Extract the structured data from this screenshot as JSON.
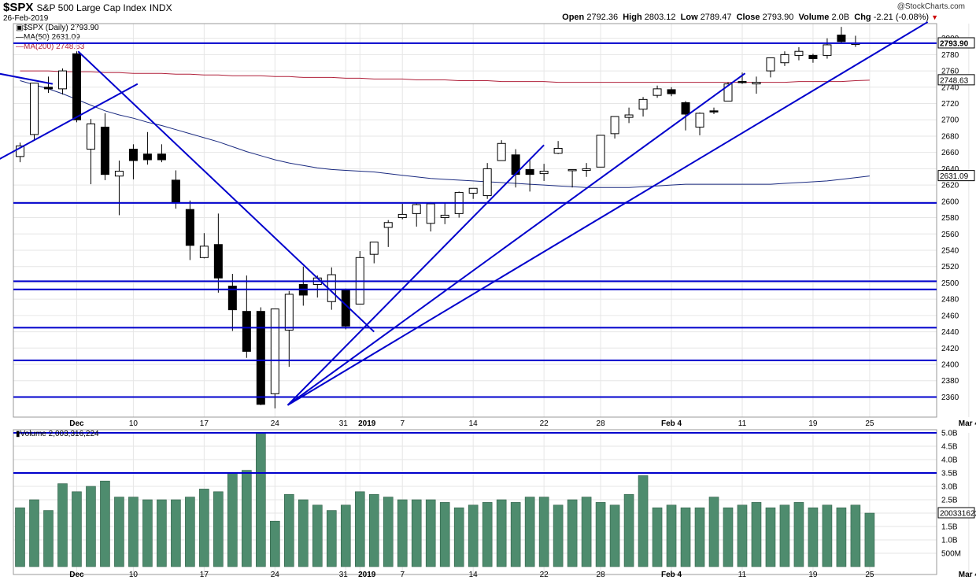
{
  "header": {
    "symbol": "$SPX",
    "name": "S&P 500 Large Cap Index",
    "exchange": "INDX",
    "date": "26-Feb-2019",
    "copyright": "@StockCharts.com",
    "open_label": "Open",
    "open": "2792.36",
    "high_label": "High",
    "high": "2803.12",
    "low_label": "Low",
    "low": "2789.47",
    "close_label": "Close",
    "close": "2793.90",
    "volume_label": "Volume",
    "volume": "2.0B",
    "chg_label": "Chg",
    "chg": "-2.21 (-0.08%)"
  },
  "legend": {
    "price": "$SPX (Daily) 2793.90",
    "ma50": "MA(50) 2631.09",
    "ma200": "MA(200) 2748.63",
    "volume": "Volume 2,003,316,224"
  },
  "colors": {
    "up": "#ffffff",
    "down": "#000000",
    "trendline": "#0000cc",
    "ma50": "#1a2a80",
    "ma200": "#b0203a",
    "volume_bar": "#4e8c6e",
    "grid": "#e6e6e6"
  },
  "chart_data": [
    {
      "type": "candlestick",
      "title": "$SPX (Daily)",
      "ylim": [
        2345,
        2818
      ],
      "y_ticks": [
        2360,
        2380,
        2400,
        2420,
        2440,
        2460,
        2480,
        2500,
        2520,
        2540,
        2560,
        2580,
        2600,
        2620,
        2640,
        2660,
        2680,
        2700,
        2720,
        2740,
        2760,
        2780,
        2800
      ],
      "x_tick_labels": [
        {
          "label": "Dec",
          "bold": true,
          "index": 4
        },
        {
          "label": "10",
          "index": 8
        },
        {
          "label": "17",
          "index": 13
        },
        {
          "label": "24",
          "index": 18
        },
        {
          "label": "31",
          "index": 23
        },
        {
          "label": "2019",
          "bold": true,
          "index": 24
        },
        {
          "label": "7",
          "index": 27
        },
        {
          "label": "14",
          "index": 32
        },
        {
          "label": "22",
          "index": 37
        },
        {
          "label": "28",
          "index": 41
        },
        {
          "label": "Feb 4",
          "bold": true,
          "index": 46
        },
        {
          "label": "11",
          "index": 51
        },
        {
          "label": "19",
          "index": 56
        },
        {
          "label": "25",
          "index": 60
        },
        {
          "label": "Mar 4",
          "bold": true,
          "index": 67
        }
      ],
      "candles": [
        {
          "o": 2655,
          "h": 2672,
          "l": 2648,
          "c": 2668
        },
        {
          "o": 2682,
          "h": 2745,
          "l": 2675,
          "c": 2745
        },
        {
          "o": 2740,
          "h": 2753,
          "l": 2733,
          "c": 2738
        },
        {
          "o": 2738,
          "h": 2763,
          "l": 2731,
          "c": 2760
        },
        {
          "o": 2781,
          "h": 2784,
          "l": 2697,
          "c": 2700
        },
        {
          "o": 2664,
          "h": 2701,
          "l": 2621,
          "c": 2695
        },
        {
          "o": 2691,
          "h": 2708,
          "l": 2626,
          "c": 2633
        },
        {
          "o": 2631,
          "h": 2650,
          "l": 2583,
          "c": 2637
        },
        {
          "o": 2664,
          "h": 2670,
          "l": 2627,
          "c": 2650
        },
        {
          "o": 2658,
          "h": 2685,
          "l": 2645,
          "c": 2651
        },
        {
          "o": 2658,
          "h": 2670,
          "l": 2648,
          "c": 2651
        },
        {
          "o": 2626,
          "h": 2638,
          "l": 2591,
          "c": 2598
        },
        {
          "o": 2590,
          "h": 2601,
          "l": 2528,
          "c": 2546
        },
        {
          "o": 2531,
          "h": 2561,
          "l": 2530,
          "c": 2545
        },
        {
          "o": 2547,
          "h": 2585,
          "l": 2488,
          "c": 2506
        },
        {
          "o": 2496,
          "h": 2511,
          "l": 2441,
          "c": 2467
        },
        {
          "o": 2465,
          "h": 2509,
          "l": 2408,
          "c": 2416
        },
        {
          "o": 2465,
          "h": 2470,
          "l": 2350,
          "c": 2351
        },
        {
          "o": 2364,
          "h": 2468,
          "l": 2346,
          "c": 2468
        },
        {
          "o": 2442,
          "h": 2490,
          "l": 2397,
          "c": 2486
        },
        {
          "o": 2498,
          "h": 2520,
          "l": 2472,
          "c": 2485
        },
        {
          "o": 2498,
          "h": 2509,
          "l": 2482,
          "c": 2506
        },
        {
          "o": 2477,
          "h": 2519,
          "l": 2467,
          "c": 2510
        },
        {
          "o": 2491,
          "h": 2493,
          "l": 2443,
          "c": 2447
        },
        {
          "o": 2474,
          "h": 2539,
          "l": 2474,
          "c": 2531
        },
        {
          "o": 2535,
          "h": 2547,
          "l": 2524,
          "c": 2550
        },
        {
          "o": 2568,
          "h": 2577,
          "l": 2544,
          "c": 2574
        },
        {
          "o": 2580,
          "h": 2597,
          "l": 2578,
          "c": 2584
        },
        {
          "o": 2585,
          "h": 2598,
          "l": 2569,
          "c": 2596
        },
        {
          "o": 2573,
          "h": 2599,
          "l": 2563,
          "c": 2597
        },
        {
          "o": 2580,
          "h": 2598,
          "l": 2572,
          "c": 2583
        },
        {
          "o": 2585,
          "h": 2612,
          "l": 2580,
          "c": 2611
        },
        {
          "o": 2610,
          "h": 2616,
          "l": 2603,
          "c": 2616
        },
        {
          "o": 2607,
          "h": 2647,
          "l": 2603,
          "c": 2640
        },
        {
          "o": 2650,
          "h": 2675,
          "l": 2650,
          "c": 2671
        },
        {
          "o": 2657,
          "h": 2664,
          "l": 2617,
          "c": 2633
        },
        {
          "o": 2639,
          "h": 2651,
          "l": 2612,
          "c": 2633
        },
        {
          "o": 2634,
          "h": 2646,
          "l": 2625,
          "c": 2637
        },
        {
          "o": 2659,
          "h": 2674,
          "l": 2658,
          "c": 2665
        },
        {
          "o": 2639,
          "h": 2639,
          "l": 2617,
          "c": 2639
        },
        {
          "o": 2638,
          "h": 2647,
          "l": 2630,
          "c": 2640
        },
        {
          "o": 2642,
          "h": 2681,
          "l": 2642,
          "c": 2681
        },
        {
          "o": 2683,
          "h": 2704,
          "l": 2677,
          "c": 2704
        },
        {
          "o": 2703,
          "h": 2715,
          "l": 2696,
          "c": 2706
        },
        {
          "o": 2713,
          "h": 2728,
          "l": 2704,
          "c": 2725
        },
        {
          "o": 2730,
          "h": 2742,
          "l": 2727,
          "c": 2738
        },
        {
          "o": 2737,
          "h": 2740,
          "l": 2729,
          "c": 2732
        },
        {
          "o": 2721,
          "h": 2723,
          "l": 2687,
          "c": 2707
        },
        {
          "o": 2691,
          "h": 2709,
          "l": 2681,
          "c": 2708
        },
        {
          "o": 2711,
          "h": 2715,
          "l": 2707,
          "c": 2710
        },
        {
          "o": 2723,
          "h": 2746,
          "l": 2723,
          "c": 2744
        },
        {
          "o": 2747,
          "h": 2758,
          "l": 2744,
          "c": 2746
        },
        {
          "o": 2744,
          "h": 2753,
          "l": 2732,
          "c": 2746
        },
        {
          "o": 2760,
          "h": 2776,
          "l": 2752,
          "c": 2776
        },
        {
          "o": 2770,
          "h": 2784,
          "l": 2766,
          "c": 2780
        },
        {
          "o": 2779,
          "h": 2789,
          "l": 2773,
          "c": 2784
        },
        {
          "o": 2779,
          "h": 2781,
          "l": 2770,
          "c": 2775
        },
        {
          "o": 2779,
          "h": 2800,
          "l": 2775,
          "c": 2792
        },
        {
          "o": 2804,
          "h": 2814,
          "l": 2794,
          "c": 2796
        },
        {
          "o": 2792.36,
          "h": 2803.12,
          "l": 2789.47,
          "c": 2793.9
        }
      ],
      "ma50": [
        2748,
        2743,
        2738,
        2732,
        2725,
        2718,
        2711,
        2706,
        2702,
        2697,
        2693,
        2688,
        2683,
        2678,
        2673,
        2667,
        2661,
        2656,
        2651,
        2647,
        2644,
        2641,
        2639,
        2638,
        2637,
        2636,
        2634,
        2632,
        2630,
        2628,
        2627,
        2626,
        2625,
        2624,
        2623,
        2622,
        2621,
        2620,
        2619,
        2618,
        2617,
        2617,
        2617,
        2617,
        2618,
        2619,
        2620,
        2621,
        2621,
        2621,
        2621,
        2621,
        2621,
        2621,
        2622,
        2623,
        2624,
        2625,
        2627,
        2629,
        2631.09
      ],
      "ma200": [
        2760,
        2760,
        2760,
        2759,
        2759,
        2759,
        2758,
        2758,
        2757,
        2757,
        2757,
        2756,
        2756,
        2755,
        2755,
        2754,
        2754,
        2754,
        2753,
        2753,
        2752,
        2752,
        2752,
        2751,
        2751,
        2750,
        2750,
        2750,
        2749,
        2749,
        2749,
        2748,
        2748,
        2748,
        2747,
        2747,
        2747,
        2747,
        2746,
        2746,
        2746,
        2746,
        2746,
        2746,
        2746,
        2746,
        2746,
        2746,
        2746,
        2746,
        2746,
        2746,
        2746,
        2746,
        2746,
        2747,
        2747,
        2747,
        2747,
        2748,
        2748.63
      ],
      "last_price_label": "2793.90",
      "ma200_label": "2748.63",
      "ma50_label": "2631.09",
      "horizontal_lines": [
        2794,
        2598,
        2502,
        2492,
        2445,
        2405,
        2360
      ],
      "trendlines": [
        {
          "x1": -2.5,
          "y1": 2760,
          "x2": 2.3,
          "y2": 2744
        },
        {
          "x1": -2.5,
          "y1": 2642,
          "x2": 8.3,
          "y2": 2744
        },
        {
          "x1": 4.1,
          "y1": 2784,
          "x2": 25.0,
          "y2": 2440
        },
        {
          "x1": 18.9,
          "y1": 2350,
          "x2": 37.0,
          "y2": 2669
        },
        {
          "x1": 18.9,
          "y1": 2350,
          "x2": 51.2,
          "y2": 2757
        },
        {
          "x1": 18.9,
          "y1": 2350,
          "x2": 64.1,
          "y2": 2820
        }
      ]
    },
    {
      "type": "bar",
      "title": "Volume",
      "ylim": [
        0,
        5.0
      ],
      "y_tick_labels": [
        "500M",
        "1.0B",
        "1.5B",
        "2.0B",
        "2.5B",
        "3.0B",
        "3.5B",
        "4.0B",
        "4.5B",
        "5.0B"
      ],
      "y_tick_values": [
        0.5,
        1.0,
        1.5,
        2.0,
        2.5,
        3.0,
        3.5,
        4.0,
        4.5,
        5.0
      ],
      "last_volume_label": "2003316224",
      "horizontal_lines": [
        5.0,
        3.5
      ],
      "values": [
        2.2,
        2.5,
        2.1,
        3.1,
        2.8,
        3.0,
        3.2,
        2.6,
        2.6,
        2.5,
        2.5,
        2.5,
        2.6,
        2.9,
        2.8,
        3.5,
        3.6,
        5.0,
        1.7,
        2.7,
        2.5,
        2.3,
        2.1,
        2.3,
        2.8,
        2.7,
        2.6,
        2.5,
        2.5,
        2.5,
        2.4,
        2.2,
        2.3,
        2.4,
        2.5,
        2.4,
        2.6,
        2.6,
        2.3,
        2.5,
        2.6,
        2.4,
        2.3,
        2.7,
        3.4,
        2.2,
        2.3,
        2.2,
        2.2,
        2.6,
        2.2,
        2.3,
        2.4,
        2.2,
        2.3,
        2.4,
        2.2,
        2.3,
        2.2,
        2.3,
        2.0
      ]
    }
  ]
}
